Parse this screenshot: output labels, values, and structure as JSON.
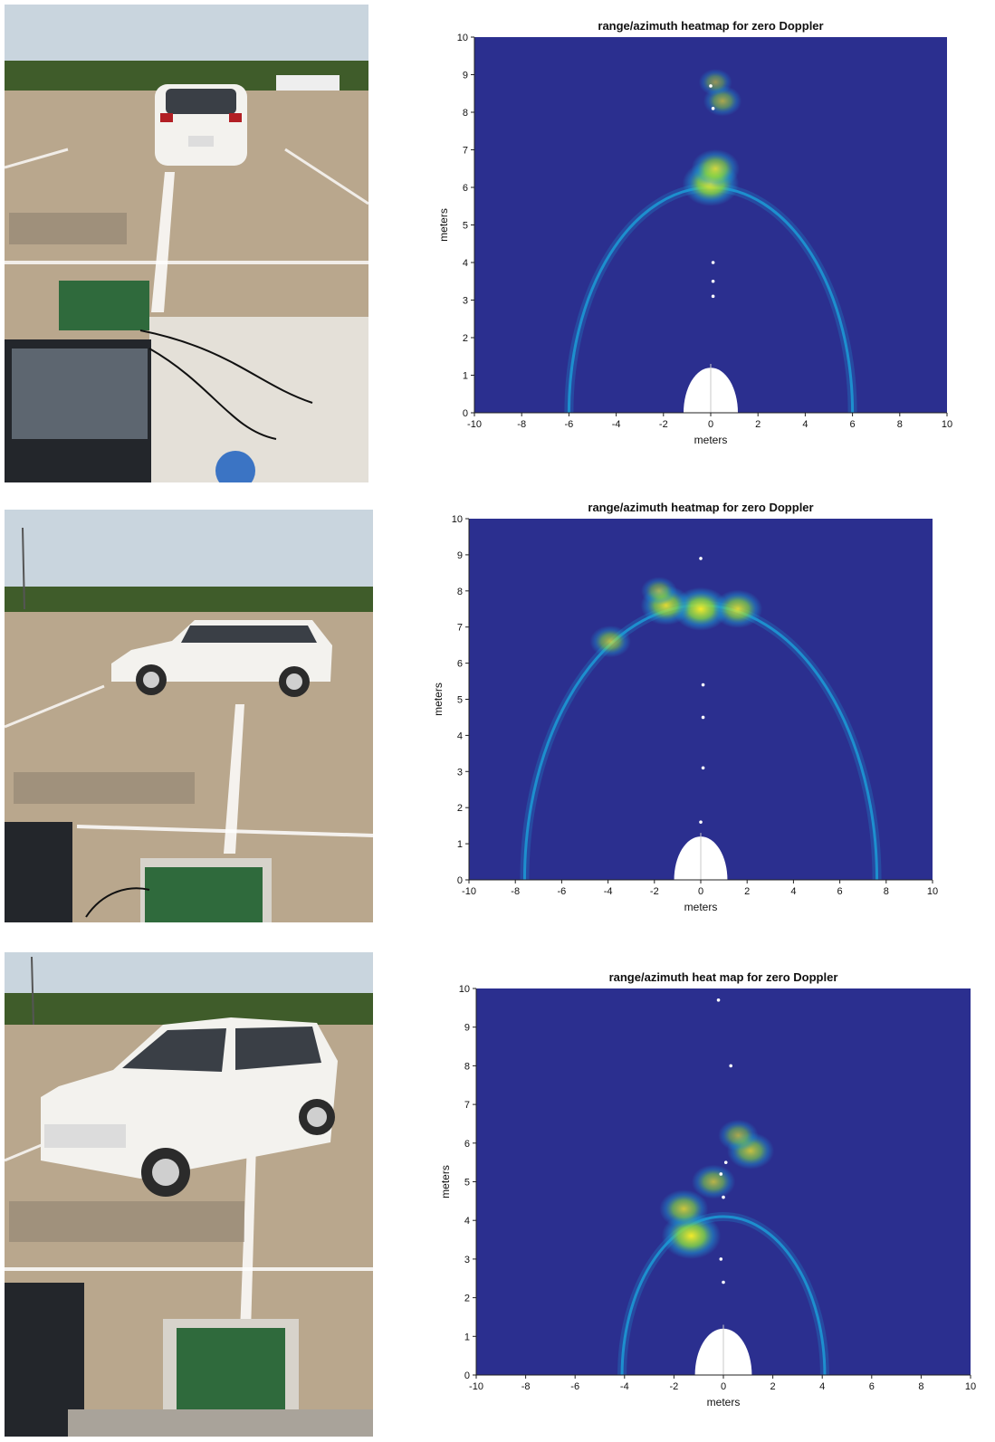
{
  "colors": {
    "sky": "#c9d5de",
    "trees": "#3f5c2a",
    "asphalt": "#b9a78d",
    "lines": "#ffffff",
    "car": "#f3f2ee",
    "heat_background": "#2b2f8f",
    "heat_arc": "#1c9bd6",
    "heat_hot": "#f4ea2a",
    "radar_board": "#2f6a3c"
  },
  "photos": [
    {
      "label": "photo-car-rear-view",
      "view": "rear"
    },
    {
      "label": "photo-car-side-view",
      "view": "side"
    },
    {
      "label": "photo-car-angled-view",
      "view": "angled"
    }
  ],
  "chart_data": [
    {
      "type": "heatmap",
      "title": "range/azimuth heatmap for zero Doppler",
      "xlabel": "meters",
      "ylabel": "meters",
      "xlim": [
        -10,
        10
      ],
      "ylim": [
        0,
        10
      ],
      "xticks": [
        -10,
        -8,
        -6,
        -4,
        -2,
        0,
        2,
        4,
        6,
        8,
        10
      ],
      "yticks": [
        0,
        1,
        2,
        3,
        4,
        5,
        6,
        7,
        8,
        9,
        10
      ],
      "grid": false,
      "field_of_view_range_m": 6.0,
      "hotspots": [
        {
          "x": 0.0,
          "y": 6.1,
          "intensity": 1.0
        },
        {
          "x": 0.2,
          "y": 6.5,
          "intensity": 0.75
        },
        {
          "x": 0.5,
          "y": 8.3,
          "intensity": 0.45
        },
        {
          "x": 0.2,
          "y": 8.8,
          "intensity": 0.3
        }
      ],
      "points": [
        {
          "x": 0.0,
          "y": 8.7
        },
        {
          "x": 0.1,
          "y": 8.1
        },
        {
          "x": 0.1,
          "y": 4.0
        },
        {
          "x": 0.1,
          "y": 3.5
        },
        {
          "x": 0.1,
          "y": 3.1
        }
      ]
    },
    {
      "type": "heatmap",
      "title": "range/azimuth heatmap for zero Doppler",
      "xlabel": "meters",
      "ylabel": "meters",
      "xlim": [
        -10,
        10
      ],
      "ylim": [
        0,
        10
      ],
      "xticks": [
        -10,
        -8,
        -6,
        -4,
        -2,
        0,
        2,
        4,
        6,
        8,
        10
      ],
      "yticks": [
        0,
        1,
        2,
        3,
        4,
        5,
        6,
        7,
        8,
        9,
        10
      ],
      "grid": false,
      "field_of_view_range_m": 7.6,
      "hotspots": [
        {
          "x": 0.0,
          "y": 7.5,
          "intensity": 1.0
        },
        {
          "x": -1.5,
          "y": 7.6,
          "intensity": 0.85
        },
        {
          "x": 1.6,
          "y": 7.5,
          "intensity": 0.8
        },
        {
          "x": -3.9,
          "y": 6.6,
          "intensity": 0.55
        },
        {
          "x": -1.8,
          "y": 8.0,
          "intensity": 0.4
        }
      ],
      "points": [
        {
          "x": 0.0,
          "y": 8.9
        },
        {
          "x": 0.1,
          "y": 5.4
        },
        {
          "x": 0.1,
          "y": 4.5
        },
        {
          "x": 0.1,
          "y": 3.1
        },
        {
          "x": 0.0,
          "y": 1.6
        }
      ]
    },
    {
      "type": "heatmap",
      "title": "range/azimuth heat map for zero Doppler",
      "xlabel": "meters",
      "ylabel": "meters",
      "xlim": [
        -10,
        10
      ],
      "ylim": [
        0,
        10
      ],
      "xticks": [
        -10,
        -8,
        -6,
        -4,
        -2,
        0,
        2,
        4,
        6,
        8,
        10
      ],
      "yticks": [
        0,
        1,
        2,
        3,
        4,
        5,
        6,
        7,
        8,
        9,
        10
      ],
      "grid": false,
      "field_of_view_range_m": 4.1,
      "hotspots": [
        {
          "x": -1.3,
          "y": 3.6,
          "intensity": 1.0
        },
        {
          "x": -1.6,
          "y": 4.3,
          "intensity": 0.7
        },
        {
          "x": 1.1,
          "y": 5.8,
          "intensity": 0.65
        },
        {
          "x": -0.4,
          "y": 5.0,
          "intensity": 0.55
        },
        {
          "x": 0.6,
          "y": 6.2,
          "intensity": 0.45
        }
      ],
      "points": [
        {
          "x": -0.2,
          "y": 9.7
        },
        {
          "x": 0.3,
          "y": 8.0
        },
        {
          "x": 0.1,
          "y": 5.5
        },
        {
          "x": -0.1,
          "y": 5.2
        },
        {
          "x": 0.0,
          "y": 4.6
        },
        {
          "x": -0.1,
          "y": 3.0
        },
        {
          "x": 0.0,
          "y": 2.4
        }
      ]
    }
  ]
}
